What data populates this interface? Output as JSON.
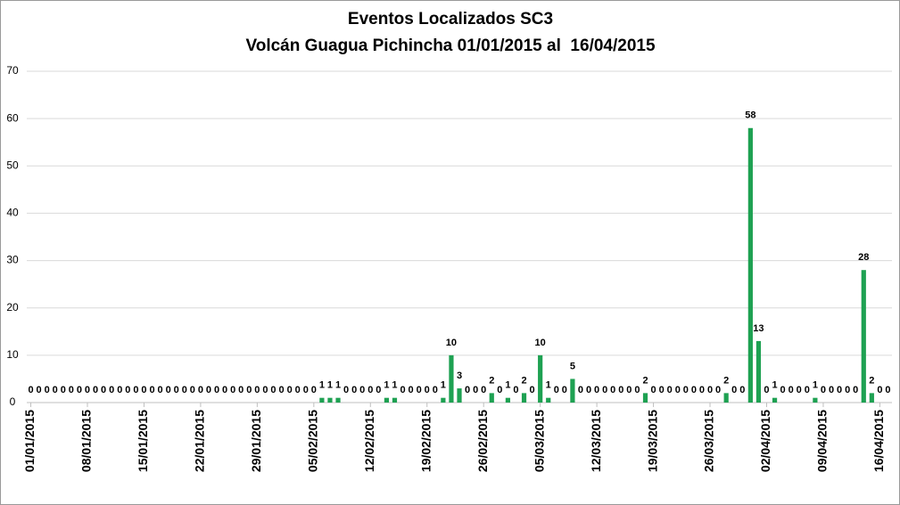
{
  "chart_data": {
    "type": "bar",
    "title": [
      "Eventos Localizados SC3",
      "Volcán Guagua Pichincha 01/01/2015 al  16/04/2015"
    ],
    "categories": [
      "01/01/2015",
      null,
      null,
      null,
      null,
      null,
      null,
      "08/01/2015",
      null,
      null,
      null,
      null,
      null,
      null,
      "15/01/2015",
      null,
      null,
      null,
      null,
      null,
      null,
      "22/01/2015",
      null,
      null,
      null,
      null,
      null,
      null,
      "29/01/2015",
      null,
      null,
      null,
      null,
      null,
      null,
      "05/02/2015",
      null,
      null,
      null,
      null,
      null,
      null,
      "12/02/2015",
      null,
      null,
      null,
      null,
      null,
      null,
      "19/02/2015",
      null,
      null,
      null,
      null,
      null,
      null,
      "26/02/2015",
      null,
      null,
      null,
      null,
      null,
      null,
      "05/03/2015",
      null,
      null,
      null,
      null,
      null,
      null,
      "12/03/2015",
      null,
      null,
      null,
      null,
      null,
      null,
      "19/03/2015",
      null,
      null,
      null,
      null,
      null,
      null,
      "26/03/2015",
      null,
      null,
      null,
      null,
      null,
      null,
      "02/04/2015",
      null,
      null,
      null,
      null,
      null,
      null,
      "09/04/2015",
      null,
      null,
      null,
      null,
      null,
      null,
      "16/04/2015",
      null
    ],
    "values": [
      0,
      0,
      0,
      0,
      0,
      0,
      0,
      0,
      0,
      0,
      0,
      0,
      0,
      0,
      0,
      0,
      0,
      0,
      0,
      0,
      0,
      0,
      0,
      0,
      0,
      0,
      0,
      0,
      0,
      0,
      0,
      0,
      0,
      0,
      0,
      0,
      1,
      1,
      1,
      0,
      0,
      0,
      0,
      0,
      1,
      1,
      0,
      0,
      0,
      0,
      0,
      1,
      10,
      3,
      0,
      0,
      0,
      2,
      0,
      1,
      0,
      2,
      0,
      10,
      1,
      0,
      0,
      5,
      0,
      0,
      0,
      0,
      0,
      0,
      0,
      0,
      2,
      0,
      0,
      0,
      0,
      0,
      0,
      0,
      0,
      0,
      2,
      0,
      0,
      58,
      13,
      0,
      1,
      0,
      0,
      0,
      0,
      1,
      0,
      0,
      0,
      0,
      0,
      28,
      2,
      0,
      0
    ],
    "color": "#1ea152",
    "ylim": [
      0,
      70
    ],
    "yticks": [
      0,
      10,
      20,
      30,
      40,
      50,
      60,
      70
    ],
    "grid": true
  }
}
